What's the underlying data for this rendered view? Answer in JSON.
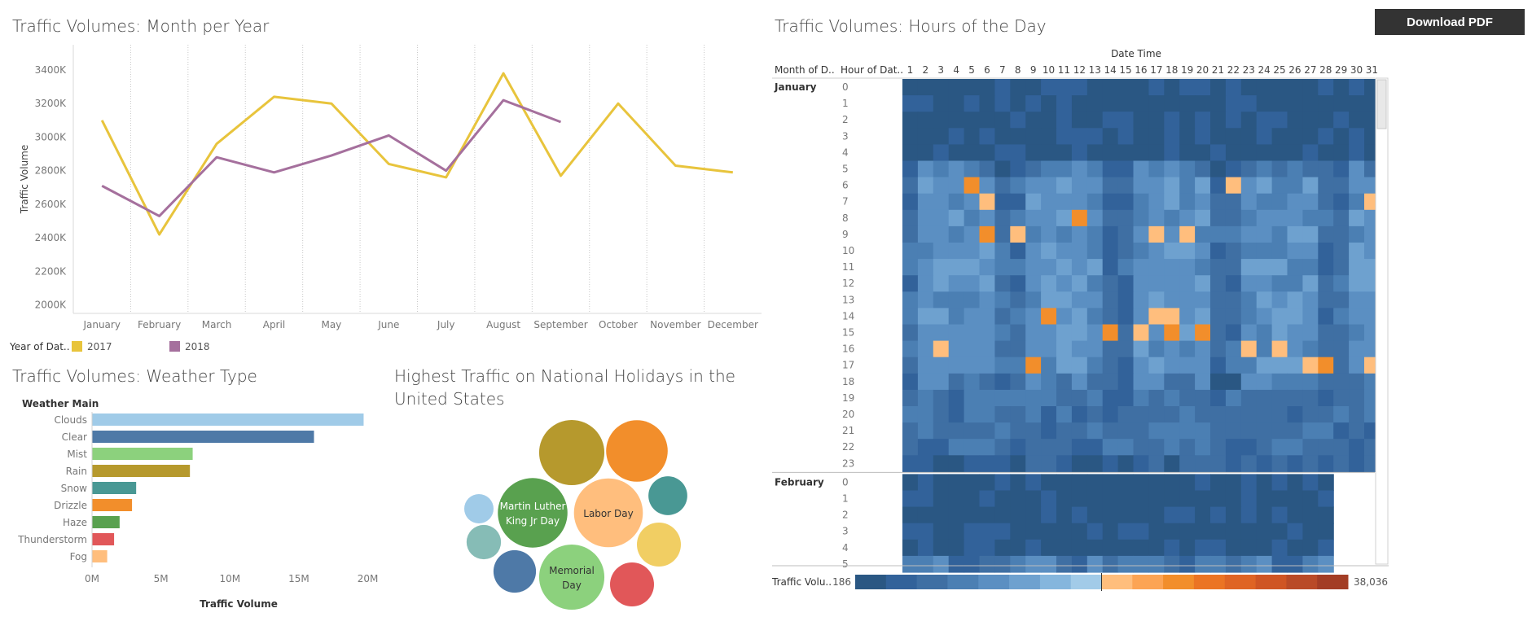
{
  "toolbar": {
    "download_label": "Download PDF"
  },
  "line_chart": {
    "title": "Traffic Volumes: Month per Year",
    "legend_title": "Year of Dat..",
    "chart_data": {
      "type": "line",
      "categories": [
        "January",
        "February",
        "March",
        "April",
        "May",
        "June",
        "July",
        "August",
        "September",
        "October",
        "November",
        "December"
      ],
      "ylabel": "Traffic Volume",
      "ylim": [
        1950000,
        3550000
      ],
      "yticks": [
        {
          "v": 2000000,
          "label": "2000K"
        },
        {
          "v": 2200000,
          "label": "2200K"
        },
        {
          "v": 2400000,
          "label": "2400K"
        },
        {
          "v": 2600000,
          "label": "2600K"
        },
        {
          "v": 2800000,
          "label": "2800K"
        },
        {
          "v": 3000000,
          "label": "3000K"
        },
        {
          "v": 3200000,
          "label": "3200K"
        },
        {
          "v": 3400000,
          "label": "3400K"
        }
      ],
      "series": [
        {
          "name": "2017",
          "color": "#e8c43c",
          "values": [
            3100000,
            2420000,
            2960000,
            3240000,
            3200000,
            2840000,
            2760000,
            3380000,
            2770000,
            3200000,
            2830000,
            2790000
          ]
        },
        {
          "name": "2018",
          "color": "#a5709d",
          "values": [
            2710000,
            2530000,
            2880000,
            2790000,
            2890000,
            3010000,
            2800000,
            3220000,
            3090000,
            null,
            null,
            null
          ]
        }
      ]
    }
  },
  "bar_chart": {
    "title": "Traffic Volumes: Weather Type",
    "chart_data": {
      "type": "bar",
      "category_header": "Weather Main",
      "xlabel": "Traffic Volume",
      "xlim": [
        0,
        20500000
      ],
      "xticks": [
        {
          "v": 0,
          "label": "0M"
        },
        {
          "v": 5000000,
          "label": "5M"
        },
        {
          "v": 10000000,
          "label": "10M"
        },
        {
          "v": 15000000,
          "label": "15M"
        },
        {
          "v": 20000000,
          "label": "20M"
        }
      ],
      "bars": [
        {
          "label": "Clouds",
          "value": 19700000,
          "color": "#a0cbe8"
        },
        {
          "label": "Clear",
          "value": 16100000,
          "color": "#4e79a7"
        },
        {
          "label": "Mist",
          "value": 7300000,
          "color": "#8cd17d"
        },
        {
          "label": "Rain",
          "value": 7100000,
          "color": "#b6992d"
        },
        {
          "label": "Snow",
          "value": 3200000,
          "color": "#499894"
        },
        {
          "label": "Drizzle",
          "value": 2900000,
          "color": "#f28e2b"
        },
        {
          "label": "Haze",
          "value": 2000000,
          "color": "#59a14f"
        },
        {
          "label": "Thunderstorm",
          "value": 1600000,
          "color": "#e15759"
        },
        {
          "label": "Fog",
          "value": 1100000,
          "color": "#ffbe7d"
        }
      ]
    }
  },
  "bubble_chart": {
    "title_line1": "Highest Traffic on National Holidays in the",
    "title_line2": "United States",
    "chart_data": {
      "type": "bubble",
      "bubbles": [
        {
          "label1": "",
          "label2": "",
          "value": 89,
          "color": "#b6992d"
        },
        {
          "label1": "",
          "label2": "",
          "value": 84,
          "color": "#f28e2b"
        },
        {
          "label1": "",
          "label2": "",
          "value": 53,
          "color": "#499894"
        },
        {
          "label1": "Martin Luther",
          "label2": "King Jr Day",
          "value": 95,
          "color": "#59a14f"
        },
        {
          "label1": "Labor Day",
          "label2": "",
          "value": 94,
          "color": "#ffbe7d"
        },
        {
          "label1": "",
          "label2": "",
          "value": 40,
          "color": "#a0cbe8"
        },
        {
          "label1": "",
          "label2": "",
          "value": 47,
          "color": "#86bcb6"
        },
        {
          "label1": "",
          "label2": "",
          "value": 60,
          "color": "#f1ce63"
        },
        {
          "label1": "",
          "label2": "",
          "value": 58,
          "color": "#4e79a7"
        },
        {
          "label1": "Memorial",
          "label2": "Day",
          "value": 89,
          "color": "#8cd17d"
        },
        {
          "label1": "",
          "label2": "",
          "value": 60,
          "color": "#e15759"
        }
      ]
    }
  },
  "heatmap": {
    "title": "Traffic Volumes: Hours of the Day",
    "column_header": "Date Time",
    "row_header_month": "Month of D..",
    "row_header_hour": "Hour of Dat..",
    "legend_label": "Traffic Volu..",
    "legend_min": "186",
    "legend_max": "38,036",
    "legend_colors": [
      "#2a5783",
      "#32629a",
      "#3f6fa3",
      "#4b7fb3",
      "#5b8fc2",
      "#6ea1cf",
      "#85b6dd",
      "#a2cbe8",
      "#ffbe7d",
      "#fca454",
      "#f28e2b",
      "#eb7424",
      "#df6424",
      "#cf5524",
      "#b94a27",
      "#a33d25"
    ],
    "chart_data": {
      "type": "heatmap",
      "days": [
        "1",
        "2",
        "3",
        "4",
        "5",
        "6",
        "7",
        "8",
        "9",
        "10",
        "11",
        "12",
        "13",
        "14",
        "15",
        "16",
        "17",
        "18",
        "19",
        "20",
        "21",
        "22",
        "23",
        "24",
        "25",
        "26",
        "27",
        "28",
        "29",
        "30",
        "31"
      ],
      "months": [
        {
          "name": "January",
          "hours": [
            "0",
            "1",
            "2",
            "3",
            "4",
            "5",
            "6",
            "7",
            "8",
            "9",
            "10",
            "11",
            "12",
            "13",
            "14",
            "15",
            "16",
            "17",
            "18",
            "19",
            "20",
            "21",
            "22",
            "23"
          ]
        },
        {
          "name": "February",
          "hours": [
            "0",
            "1",
            "2",
            "3",
            "4",
            "5"
          ]
        }
      ]
    }
  }
}
